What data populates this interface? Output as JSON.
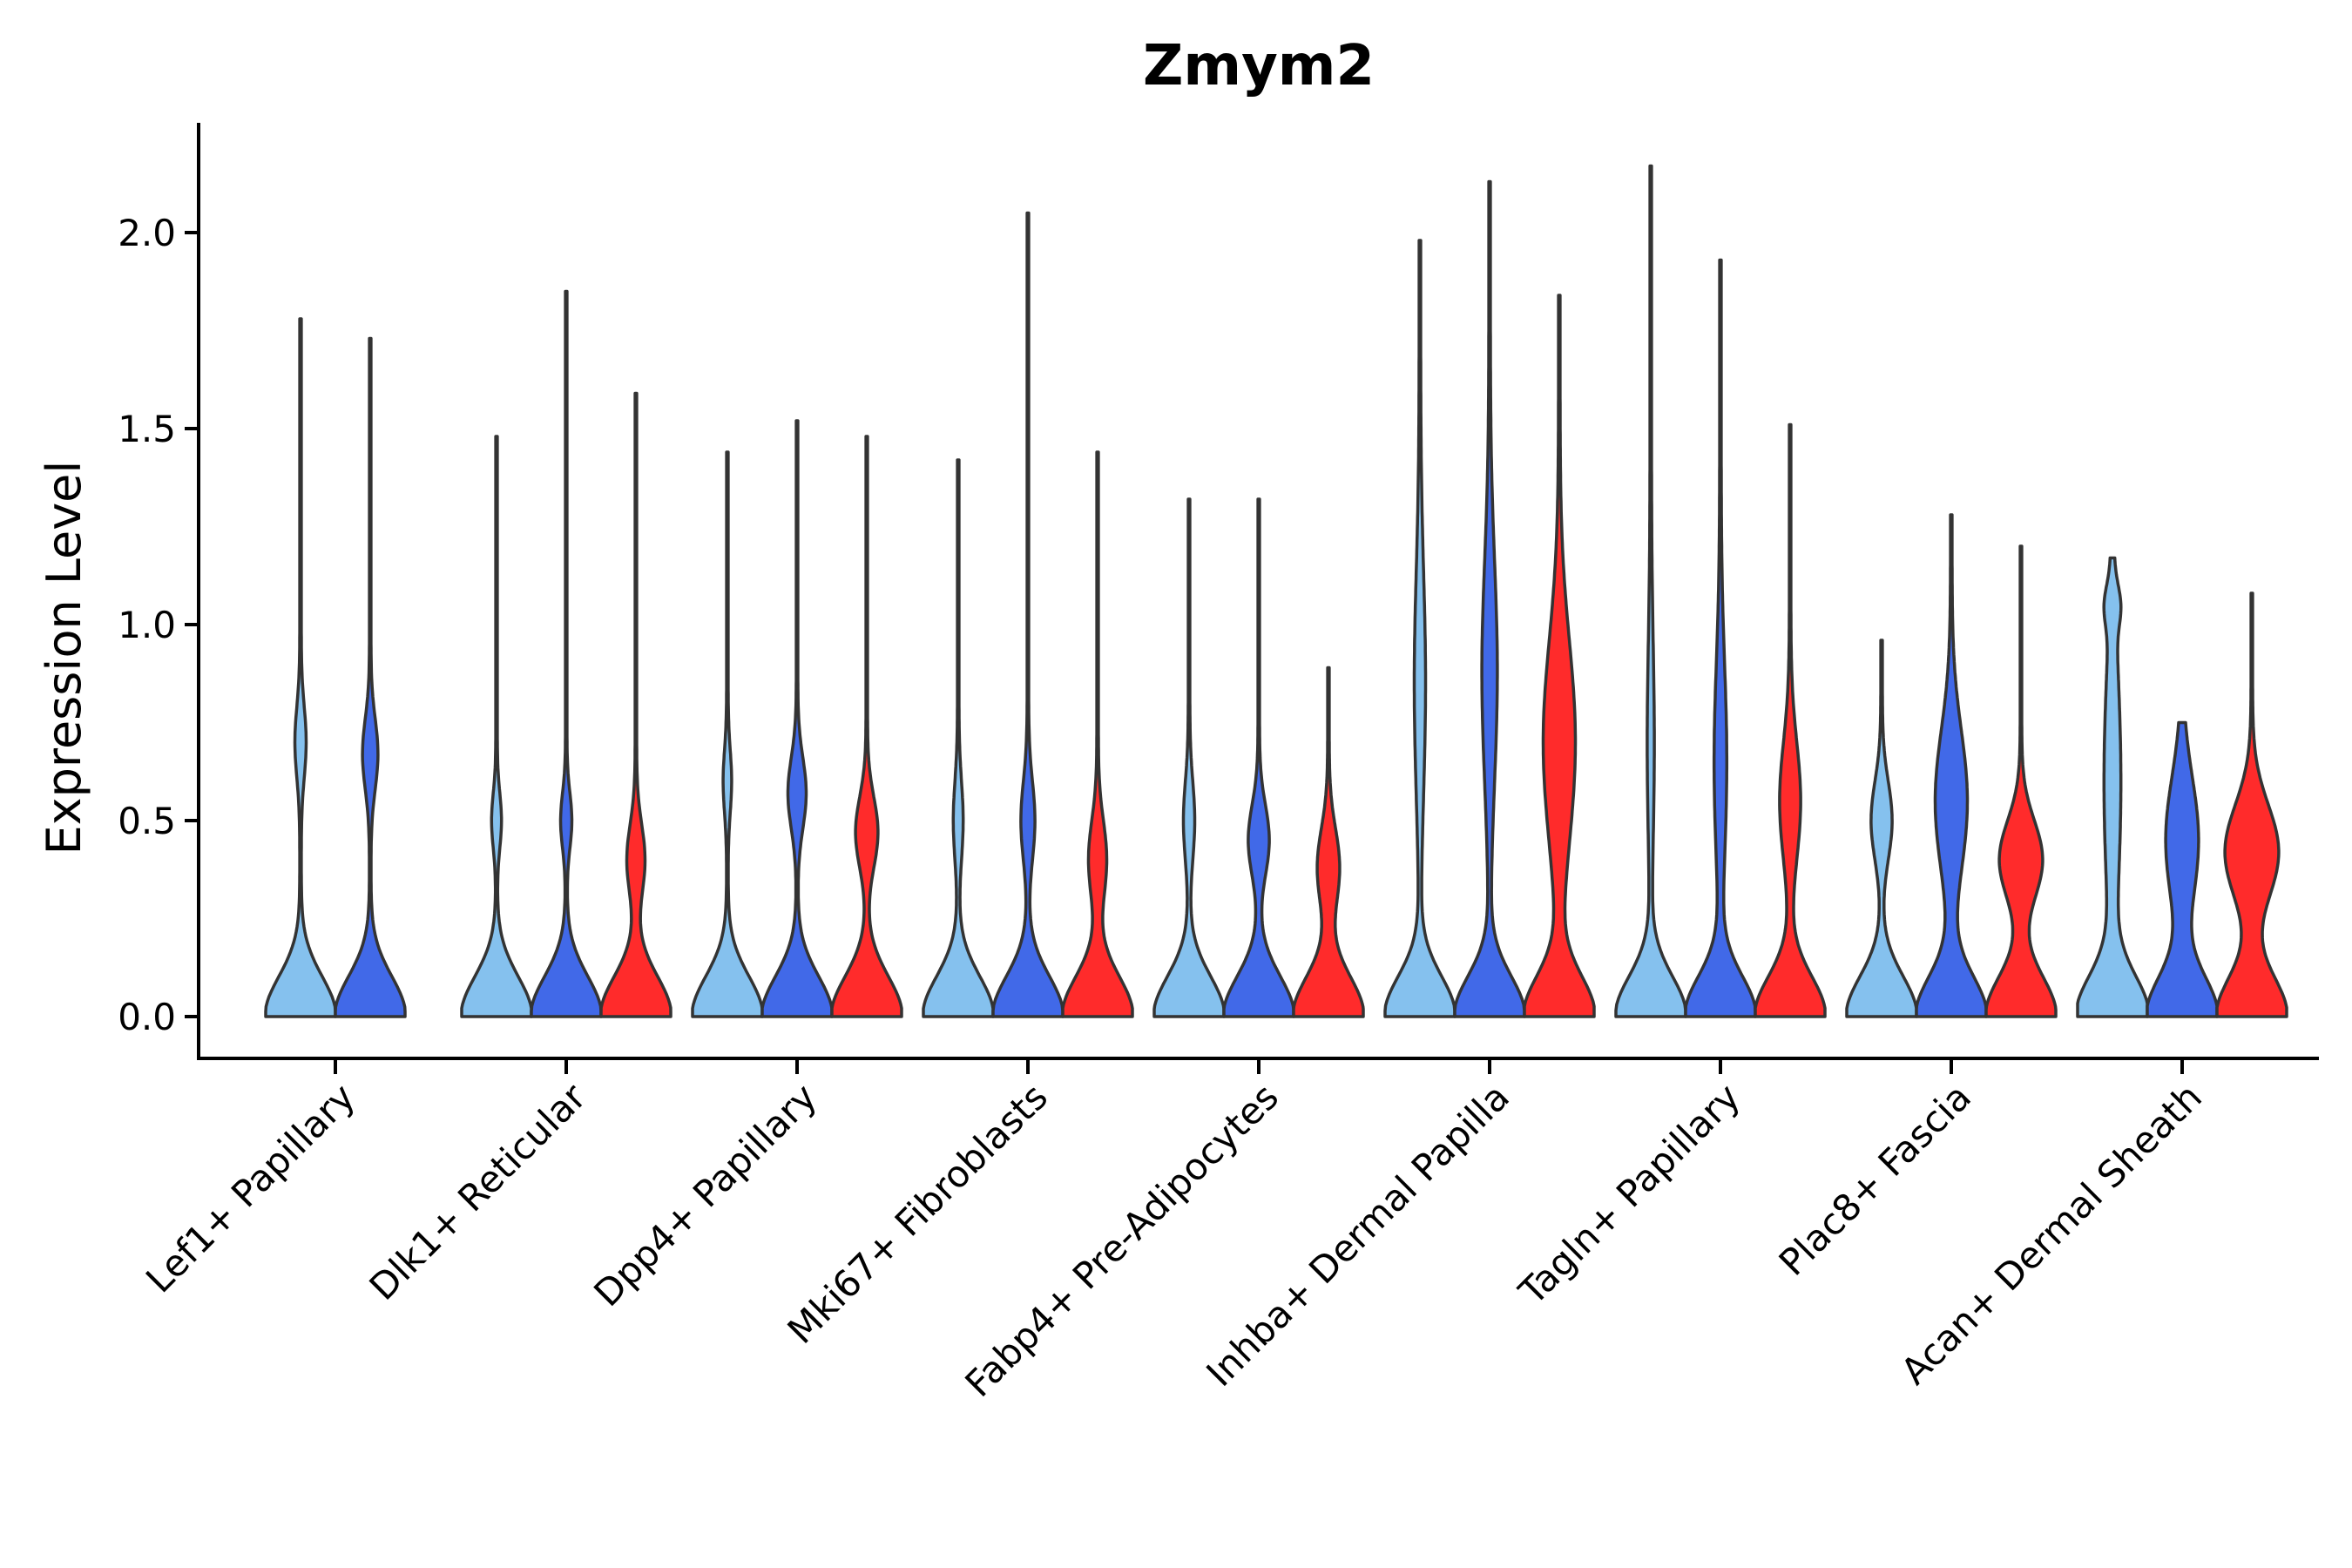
{
  "chart_data": {
    "type": "violin",
    "title": "Zmym2",
    "xlabel": "",
    "ylabel": "Expression Level",
    "ylim": [
      -0.11,
      2.28
    ],
    "yticks": [
      0.0,
      0.5,
      1.0,
      1.5,
      2.0
    ],
    "ytick_labels": [
      "0.0",
      "0.5",
      "1.0",
      "1.5",
      "2.0"
    ],
    "series_colors": [
      "#85c1ee",
      "#4169e8",
      "#ff2b2b"
    ],
    "categories": [
      "Lef1+ Papillary",
      "Dlk1+ Reticular",
      "Dpp4+ Papillary",
      "Mki67+ Fibroblasts",
      "Fabp4+ Pre-Adipocytes",
      "Inhba+ Dermal Papilla",
      "Tagln+ Papillary",
      "Plac8+ Fascia",
      "Acan+ Dermal Sheath"
    ],
    "groups": [
      {
        "category": "Lef1+ Papillary",
        "violins": [
          {
            "series": 0,
            "max": 1.78,
            "modes": [
              {
                "y": 0.7,
                "w": 0.14,
                "s": 0.09
              }
            ]
          },
          {
            "series": 1,
            "max": 1.73,
            "modes": [
              {
                "y": 0.67,
                "w": 0.2,
                "s": 0.09
              }
            ]
          }
        ]
      },
      {
        "category": "Dlk1+ Reticular",
        "violins": [
          {
            "series": 0,
            "max": 1.48,
            "modes": [
              {
                "y": 0.5,
                "w": 0.12,
                "s": 0.07
              }
            ]
          },
          {
            "series": 1,
            "max": 1.85,
            "modes": [
              {
                "y": 0.5,
                "w": 0.14,
                "s": 0.07
              }
            ]
          },
          {
            "series": 2,
            "max": 1.59,
            "modes": [
              {
                "y": 0.4,
                "w": 0.24,
                "s": 0.09
              }
            ]
          }
        ]
      },
      {
        "category": "Dpp4+ Papillary",
        "violins": [
          {
            "series": 0,
            "max": 1.44,
            "modes": [
              {
                "y": 0.6,
                "w": 0.1,
                "s": 0.08
              }
            ]
          },
          {
            "series": 1,
            "max": 1.52,
            "modes": [
              {
                "y": 0.57,
                "w": 0.24,
                "s": 0.09
              }
            ]
          },
          {
            "series": 2,
            "max": 1.48,
            "modes": [
              {
                "y": 0.47,
                "w": 0.3,
                "s": 0.09
              }
            ]
          }
        ]
      },
      {
        "category": "Mki67+ Fibroblasts",
        "violins": [
          {
            "series": 0,
            "max": 1.42,
            "modes": [
              {
                "y": 0.5,
                "w": 0.12,
                "s": 0.1
              }
            ]
          },
          {
            "series": 1,
            "max": 2.05,
            "modes": [
              {
                "y": 0.5,
                "w": 0.18,
                "s": 0.1
              }
            ]
          },
          {
            "series": 2,
            "max": 1.44,
            "modes": [
              {
                "y": 0.4,
                "w": 0.24,
                "s": 0.1
              }
            ]
          }
        ]
      },
      {
        "category": "Fabp4+ Pre-Adipocytes",
        "violins": [
          {
            "series": 0,
            "max": 1.32,
            "modes": [
              {
                "y": 0.5,
                "w": 0.14,
                "s": 0.1
              }
            ]
          },
          {
            "series": 1,
            "max": 1.32,
            "modes": [
              {
                "y": 0.45,
                "w": 0.28,
                "s": 0.09
              }
            ]
          },
          {
            "series": 2,
            "max": 0.89,
            "modes": [
              {
                "y": 0.38,
                "w": 0.3,
                "s": 0.1
              }
            ]
          }
        ]
      },
      {
        "category": "Inhba+ Dermal Papilla",
        "violins": [
          {
            "series": 0,
            "max": 1.98,
            "modes": [
              {
                "y": 0.85,
                "w": 0.14,
                "s": 0.28
              }
            ]
          },
          {
            "series": 1,
            "max": 2.13,
            "modes": [
              {
                "y": 0.88,
                "w": 0.2,
                "s": 0.28
              }
            ]
          },
          {
            "series": 2,
            "max": 1.84,
            "modes": [
              {
                "y": 0.7,
                "w": 0.44,
                "s": 0.26
              }
            ]
          }
        ]
      },
      {
        "category": "Tagln+ Papillary",
        "violins": [
          {
            "series": 0,
            "max": 2.17,
            "modes": [
              {
                "y": 0.7,
                "w": 0.08,
                "s": 0.25
              }
            ]
          },
          {
            "series": 1,
            "max": 1.93,
            "modes": [
              {
                "y": 0.65,
                "w": 0.16,
                "s": 0.25
              }
            ]
          },
          {
            "series": 2,
            "max": 1.51,
            "modes": [
              {
                "y": 0.55,
                "w": 0.28,
                "s": 0.15
              }
            ]
          }
        ]
      },
      {
        "category": "Plac8+ Fascia",
        "violins": [
          {
            "series": 0,
            "max": 0.96,
            "modes": [
              {
                "y": 0.5,
                "w": 0.28,
                "s": 0.1
              }
            ]
          },
          {
            "series": 1,
            "max": 1.28,
            "modes": [
              {
                "y": 0.55,
                "w": 0.44,
                "s": 0.18
              }
            ]
          },
          {
            "series": 2,
            "max": 1.2,
            "modes": [
              {
                "y": 0.4,
                "w": 0.6,
                "s": 0.1
              }
            ]
          }
        ]
      },
      {
        "category": "Acan+ Dermal Sheath",
        "violins": [
          {
            "series": 0,
            "max": 1.17,
            "modes": [
              {
                "y": 0.6,
                "w": 0.22,
                "s": 0.3
              },
              {
                "y": 1.05,
                "w": 0.15,
                "s": 0.05
              }
            ]
          },
          {
            "series": 1,
            "max": 0.75,
            "modes": [
              {
                "y": 0.45,
                "w": 0.45,
                "s": 0.16
              }
            ]
          },
          {
            "series": 2,
            "max": 1.08,
            "modes": [
              {
                "y": 0.42,
                "w": 0.75,
                "s": 0.12
              }
            ]
          }
        ]
      }
    ]
  }
}
